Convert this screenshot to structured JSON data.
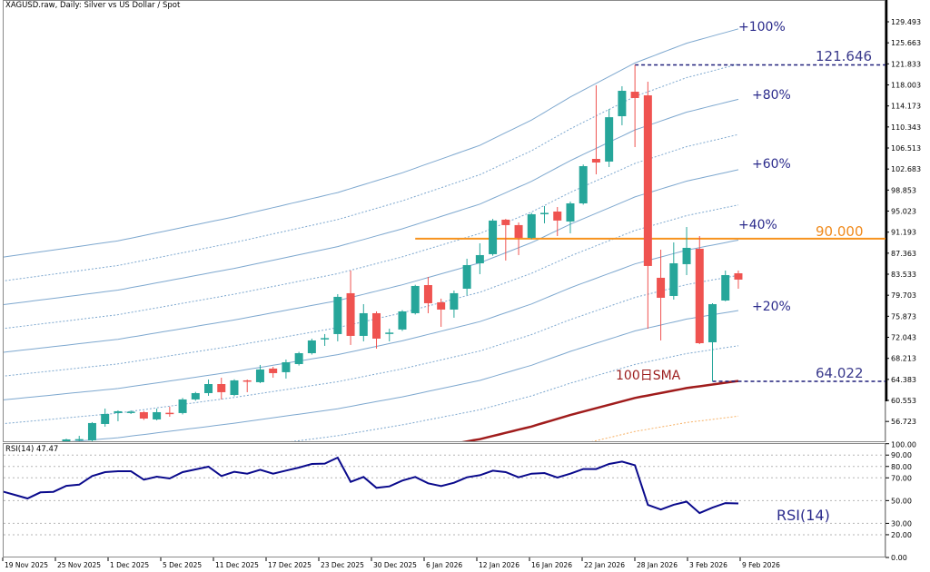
{
  "header": {
    "title": "XAGUSD.raw, Daily:  Silver vs US Dollar / Spot"
  },
  "colors": {
    "bull": "#26a69a",
    "bear": "#ef5350",
    "band": "#7ea8cf",
    "sma": "#a01c1c",
    "level_90": "#f7931e",
    "dashed_level": "#1f1f7a",
    "rsi_line": "#0a0a8c",
    "band_minus": "#f7b267"
  },
  "chart_data": {
    "type": "candlestick",
    "title": "XAGUSD.raw, Daily:  Silver vs US Dollar / Spot",
    "ylim": [
      52.96,
      133.46
    ],
    "price_ticks": [
      "129.493",
      "125.663",
      "121.833",
      "118.003",
      "114.173",
      "110.343",
      "106.513",
      "102.683",
      "98.853",
      "95.023",
      "91.193",
      "87.363",
      "83.533",
      "79.703",
      "75.873",
      "72.043",
      "68.213",
      "64.383",
      "60.553",
      "56.723"
    ],
    "x_labels": [
      "19 Nov 2025",
      "25 Nov 2025",
      "1 Dec 2025",
      "5 Dec 2025",
      "11 Dec 2025",
      "17 Dec 2025",
      "23 Dec 2025",
      "30 Dec 2025",
      "6 Jan 2026",
      "12 Jan 2026",
      "16 Jan 2026",
      "22 Jan 2026",
      "28 Jan 2026",
      "3 Feb 2026",
      "9 Feb 2026"
    ],
    "candles_ohlc": [
      [
        52.96,
        53.6,
        52.8,
        53.45
      ],
      [
        53.4,
        54.1,
        52.9,
        53.5
      ],
      [
        53.29,
        56.6,
        53.1,
        56.43
      ],
      [
        56.26,
        59.07,
        55.77,
        58.08
      ],
      [
        58.25,
        58.74,
        56.76,
        58.58
      ],
      [
        58.4,
        58.74,
        58.08,
        58.5
      ],
      [
        58.41,
        58.6,
        57.0,
        57.25
      ],
      [
        57.09,
        59.07,
        56.92,
        58.41
      ],
      [
        58.3,
        59.41,
        57.58,
        58.1
      ],
      [
        58.25,
        61.0,
        58.0,
        60.73
      ],
      [
        60.73,
        62.1,
        60.5,
        61.88
      ],
      [
        61.88,
        64.36,
        61.39,
        63.53
      ],
      [
        63.53,
        64.69,
        60.73,
        62.05
      ],
      [
        61.55,
        64.4,
        61.3,
        64.2
      ],
      [
        64.2,
        64.36,
        62.05,
        64.03
      ],
      [
        63.87,
        67.01,
        63.7,
        66.19
      ],
      [
        66.35,
        66.68,
        64.69,
        65.52
      ],
      [
        65.69,
        68.0,
        64.53,
        67.5
      ],
      [
        67.17,
        69.4,
        66.9,
        69.15
      ],
      [
        69.15,
        71.8,
        68.9,
        71.47
      ],
      [
        71.7,
        72.63,
        70.48,
        71.9
      ],
      [
        72.63,
        79.9,
        71.31,
        79.41
      ],
      [
        80.07,
        84.2,
        70.65,
        72.3
      ],
      [
        72.3,
        78.08,
        71.31,
        76.43
      ],
      [
        76.43,
        76.76,
        69.98,
        71.8
      ],
      [
        72.8,
        73.62,
        71.31,
        72.9
      ],
      [
        73.46,
        77.0,
        73.2,
        76.76
      ],
      [
        76.43,
        81.6,
        76.2,
        81.39
      ],
      [
        81.55,
        83.04,
        76.43,
        78.25
      ],
      [
        78.42,
        79.08,
        73.95,
        77.09
      ],
      [
        77.09,
        80.56,
        75.61,
        80.07
      ],
      [
        80.89,
        86.35,
        79.74,
        85.19
      ],
      [
        85.52,
        89.16,
        83.54,
        87.01
      ],
      [
        87.18,
        93.6,
        86.9,
        93.3
      ],
      [
        93.46,
        93.6,
        86.02,
        92.47
      ],
      [
        92.47,
        92.96,
        87.01,
        90.15
      ],
      [
        90.15,
        94.7,
        89.9,
        94.45
      ],
      [
        94.5,
        95.94,
        92.8,
        94.7
      ],
      [
        94.94,
        95.77,
        90.48,
        93.3
      ],
      [
        93.13,
        96.76,
        90.98,
        96.43
      ],
      [
        96.43,
        103.5,
        96.2,
        103.21
      ],
      [
        104.53,
        117.92,
        101.72,
        103.87
      ],
      [
        104.04,
        113.62,
        103.04,
        112.12
      ],
      [
        112.3,
        117.76,
        110.65,
        116.93
      ],
      [
        116.76,
        121.646,
        106.68,
        115.61
      ],
      [
        116.1,
        118.58,
        73.62,
        85.03
      ],
      [
        82.88,
        88.0,
        71.47,
        79.24
      ],
      [
        79.57,
        89.32,
        78.91,
        85.52
      ],
      [
        85.36,
        92.13,
        83.37,
        88.33
      ],
      [
        88.17,
        90.48,
        70.8,
        70.97
      ],
      [
        71.14,
        78.25,
        64.022,
        78.08
      ],
      [
        78.74,
        84.2,
        78.6,
        83.37
      ],
      [
        83.7,
        84.2,
        80.89,
        82.55
      ]
    ],
    "sma100": {
      "label": "100日SMA",
      "points": [
        [
          -5,
          43.3
        ],
        [
          4,
          44.8
        ],
        [
          13,
          47.0
        ],
        [
          21,
          49.2
        ],
        [
          26,
          51.0
        ],
        [
          32,
          53.5
        ],
        [
          36,
          55.8
        ],
        [
          39,
          57.9
        ],
        [
          44,
          61.0
        ],
        [
          48,
          62.8
        ],
        [
          52,
          64.1
        ]
      ]
    },
    "envelopes": {
      "steps_percent": [
        -10,
        10,
        20,
        30,
        40,
        50,
        60,
        70,
        80,
        90,
        100
      ],
      "labels": {
        "p100": "+100%",
        "p80": "+80%",
        "p60": "+60%",
        "p40": "+40%",
        "p20": "+20%"
      }
    },
    "levels": {
      "high": {
        "value": 121.646,
        "label": "121.646",
        "from_bar": 44
      },
      "resistance": {
        "value": 90.0,
        "label": "90.000",
        "from_bar": 27
      },
      "low": {
        "value": 64.022,
        "label": "64.022",
        "from_bar": 50
      }
    },
    "rsi": {
      "header": "RSI(14) 47.47",
      "label": "RSI(14)",
      "ylim": [
        0,
        100
      ],
      "ticks": [
        "100.00",
        "90.00",
        "80.00",
        "70.00",
        "50.00",
        "30.00",
        "20.00",
        "0.00"
      ],
      "first_bar": -5,
      "values": [
        58.3,
        55.1,
        51.9,
        57.2,
        57.7,
        63,
        64,
        71.6,
        75,
        75.8,
        75.8,
        68.4,
        71.0,
        69.4,
        75,
        77.4,
        79.8,
        71.6,
        75.3,
        73.7,
        77.1,
        73.7,
        76.4,
        79,
        82.2,
        82.5,
        87.8,
        66.5,
        70.8,
        61.2,
        62.5,
        67.6,
        70.8,
        65.2,
        62.8,
        65.7,
        70.5,
        72.3,
        76.3,
        75,
        70.5,
        73.7,
        74.2,
        70.2,
        73.7,
        77.7,
        77.7,
        82.2,
        84.3,
        81.1,
        46.2,
        42.1,
        46.4,
        49.1,
        39,
        43.8,
        47.8,
        47.47
      ]
    }
  }
}
